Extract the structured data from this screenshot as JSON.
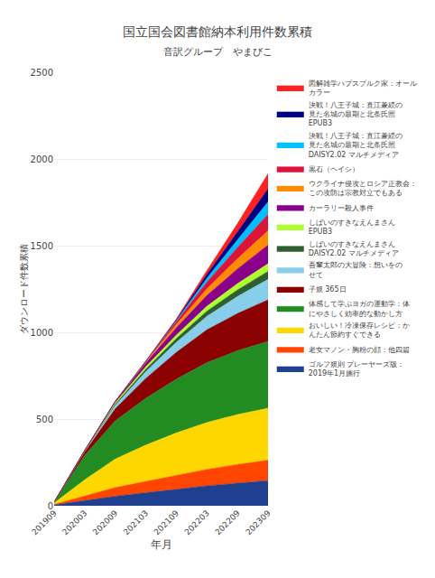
{
  "chart_data": {
    "type": "area",
    "stacked": true,
    "title": "国立国会図書館納本利用件数累積",
    "subtitle": "音訳グループ　やまびこ",
    "xlabel": "年月",
    "ylabel": "ダウンロード件数累積",
    "ylim": [
      0,
      2500
    ],
    "yticks": [
      0,
      500,
      1000,
      1500,
      2000,
      2500
    ],
    "grid": true,
    "legend": "right",
    "categories": [
      "201909",
      "202003",
      "202009",
      "202103",
      "202109",
      "202203",
      "202209",
      "202309"
    ],
    "series": [
      {
        "name": "ゴルフ規則 プレーヤーズ版：\n2019年1月施行",
        "color": "#1F3F8F",
        "values": [
          5,
          30,
          55,
          75,
          95,
          115,
          130,
          145
        ]
      },
      {
        "name": "老女マノン・胸粉の顔：他四篇",
        "color": "#FF4500",
        "values": [
          3,
          25,
          50,
          65,
          80,
          95,
          108,
          118
        ]
      },
      {
        "name": "おいしい！冷凍保存レシピ：か\nんたん節約すぐできる",
        "color": "#FFD700",
        "values": [
          8,
          95,
          165,
          210,
          245,
          270,
          288,
          300
        ]
      },
      {
        "name": "体感して学ぶヨガの運動学：体\nにやさしく効率的な動かし方",
        "color": "#228B22",
        "values": [
          5,
          140,
          220,
          270,
          310,
          345,
          368,
          385
        ]
      },
      {
        "name": "子規 365日",
        "color": "#8B0000",
        "values": [
          0,
          20,
          70,
          115,
          155,
          190,
          215,
          240
        ]
      },
      {
        "name": "吾輩太郎の大冒険：想いをの\nせて",
        "color": "#87CEEB",
        "values": [
          0,
          5,
          18,
          38,
          58,
          78,
          98,
          118
        ]
      },
      {
        "name": "しばいのすきなえんまさん\nDAISY2.02 マルチメディア",
        "color": "#2F5F2F",
        "values": [
          0,
          2,
          8,
          15,
          22,
          30,
          38,
          46
        ]
      },
      {
        "name": "しばいのすきなえんまさん\nEPUB3",
        "color": "#ADFF2F",
        "values": [
          0,
          2,
          8,
          14,
          20,
          28,
          36,
          44
        ]
      },
      {
        "name": "カーラリー殺人事件",
        "color": "#8B008B",
        "values": [
          0,
          0,
          8,
          22,
          42,
          62,
          85,
          108
        ]
      },
      {
        "name": "ウクライナ侵攻とロシア正教会：\nこの攻防は宗教対立でもある",
        "color": "#FF8C00",
        "values": [
          0,
          0,
          0,
          5,
          18,
          38,
          58,
          82
        ]
      },
      {
        "name": "黒石（ヘイシ）",
        "color": "#DC143C",
        "values": [
          0,
          0,
          0,
          5,
          18,
          40,
          65,
          95
        ]
      },
      {
        "name": "決戦！八王子城：直江兼続の\n見た名城の最期と北条氏照\nDAISY2.02 マルチメディア",
        "color": "#00BFFF",
        "values": [
          0,
          0,
          0,
          0,
          5,
          22,
          45,
          72
        ]
      },
      {
        "name": "決戦！八王子城：直江兼続の\n見た名城の最期と北条氏照\nEPUB3",
        "color": "#000080",
        "values": [
          0,
          0,
          0,
          0,
          5,
          22,
          45,
          75
        ]
      },
      {
        "name": "図解雑学ハプスブルク家：オール\nカラー",
        "color": "#FF2020",
        "values": [
          0,
          0,
          0,
          0,
          5,
          22,
          48,
          88
        ]
      }
    ]
  }
}
